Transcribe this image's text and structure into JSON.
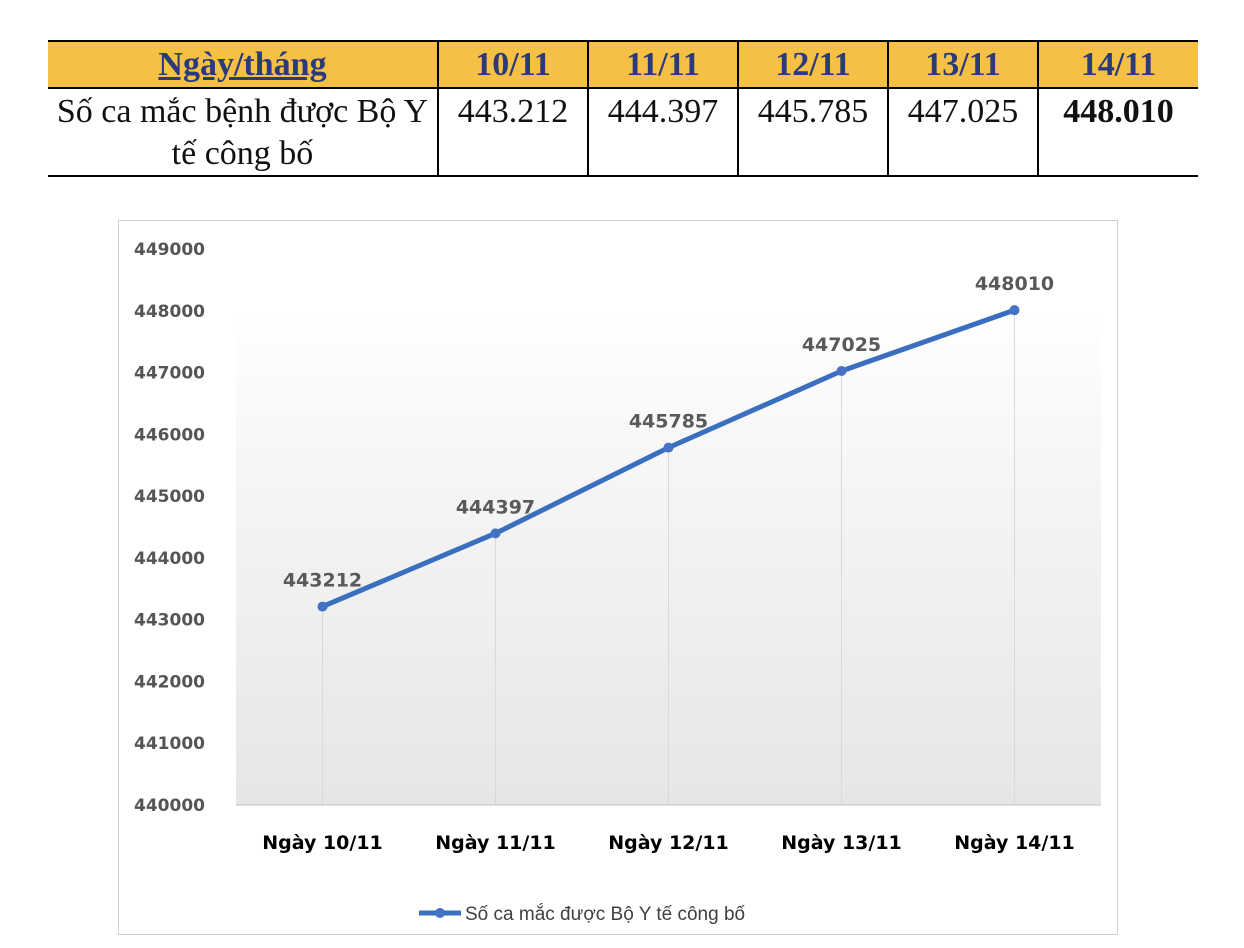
{
  "table": {
    "header_label": "Ngày/tháng",
    "dates": [
      "10/11",
      "11/11",
      "12/11",
      "13/11",
      "14/11"
    ],
    "row_label": "Số ca mắc bệnh được Bộ Y tế công bố",
    "values": [
      "443.212",
      "444.397",
      "445.785",
      "447.025",
      "448.010"
    ]
  },
  "chart_data": {
    "type": "line",
    "categories": [
      "Ngày 10/11",
      "Ngày 11/11",
      "Ngày 12/11",
      "Ngày 13/11",
      "Ngày 14/11"
    ],
    "series": [
      {
        "name": "Số ca mắc được Bộ Y tế công bố",
        "values": [
          443212,
          444397,
          445785,
          447025,
          448010
        ]
      }
    ],
    "ylim": [
      440000,
      449000
    ],
    "yticks": [
      440000,
      441000,
      442000,
      443000,
      444000,
      445000,
      446000,
      447000,
      448000,
      449000
    ],
    "data_labels": true,
    "legend_position": "bottom",
    "grid": "vertical drop lines at categories",
    "line_color": "#3a6fc0",
    "header_color": "#f6c044"
  }
}
